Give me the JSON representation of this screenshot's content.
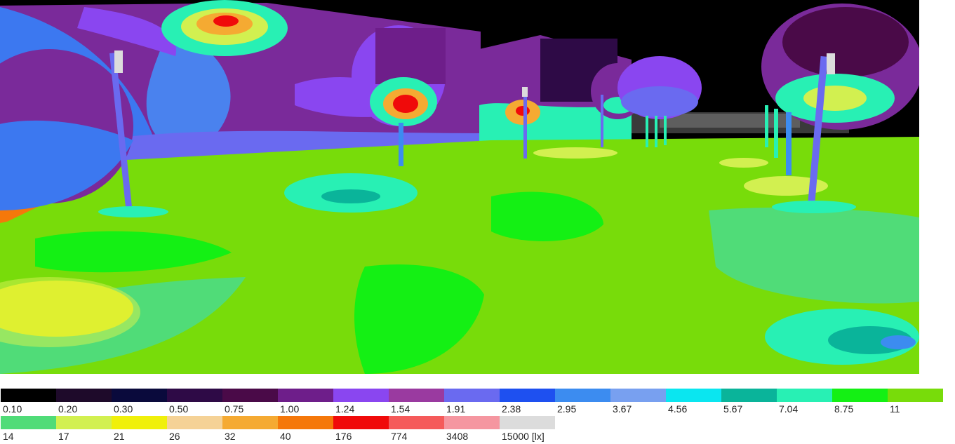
{
  "legend": {
    "row1": [
      {
        "label": "0.10",
        "color": "#000000"
      },
      {
        "label": "0.20",
        "color": "#1e0a2a"
      },
      {
        "label": "0.30",
        "color": "#0a0a3c"
      },
      {
        "label": "0.50",
        "color": "#2e0a46"
      },
      {
        "label": "0.75",
        "color": "#4a0a48"
      },
      {
        "label": "1.00",
        "color": "#6e1e8a"
      },
      {
        "label": "1.24",
        "color": "#8a46f0"
      },
      {
        "label": "1.54",
        "color": "#9a3aa0"
      },
      {
        "label": "1.91",
        "color": "#6a6af0"
      },
      {
        "label": "2.38",
        "color": "#1e50f0"
      },
      {
        "label": "2.95",
        "color": "#3c8cf0"
      },
      {
        "label": "3.67",
        "color": "#78a0f0"
      },
      {
        "label": "4.56",
        "color": "#0ae6f0"
      },
      {
        "label": "5.67",
        "color": "#0ab49a"
      },
      {
        "label": "7.04",
        "color": "#28f0b4"
      },
      {
        "label": "8.75",
        "color": "#14f014"
      },
      {
        "label": "11",
        "color": "#78dc0a"
      }
    ],
    "row2": [
      {
        "label": "14",
        "color": "#50dc78"
      },
      {
        "label": "17",
        "color": "#d2f050"
      },
      {
        "label": "21",
        "color": "#f0f00a"
      },
      {
        "label": "26",
        "color": "#f5d296"
      },
      {
        "label": "32",
        "color": "#f5aa32"
      },
      {
        "label": "40",
        "color": "#f5780a"
      },
      {
        "label": "176",
        "color": "#f00a0a"
      },
      {
        "label": "774",
        "color": "#f55a5a"
      },
      {
        "label": "3408",
        "color": "#f596a0"
      },
      {
        "label": "15000 [lx]",
        "color": "#dcdcdc"
      }
    ]
  }
}
